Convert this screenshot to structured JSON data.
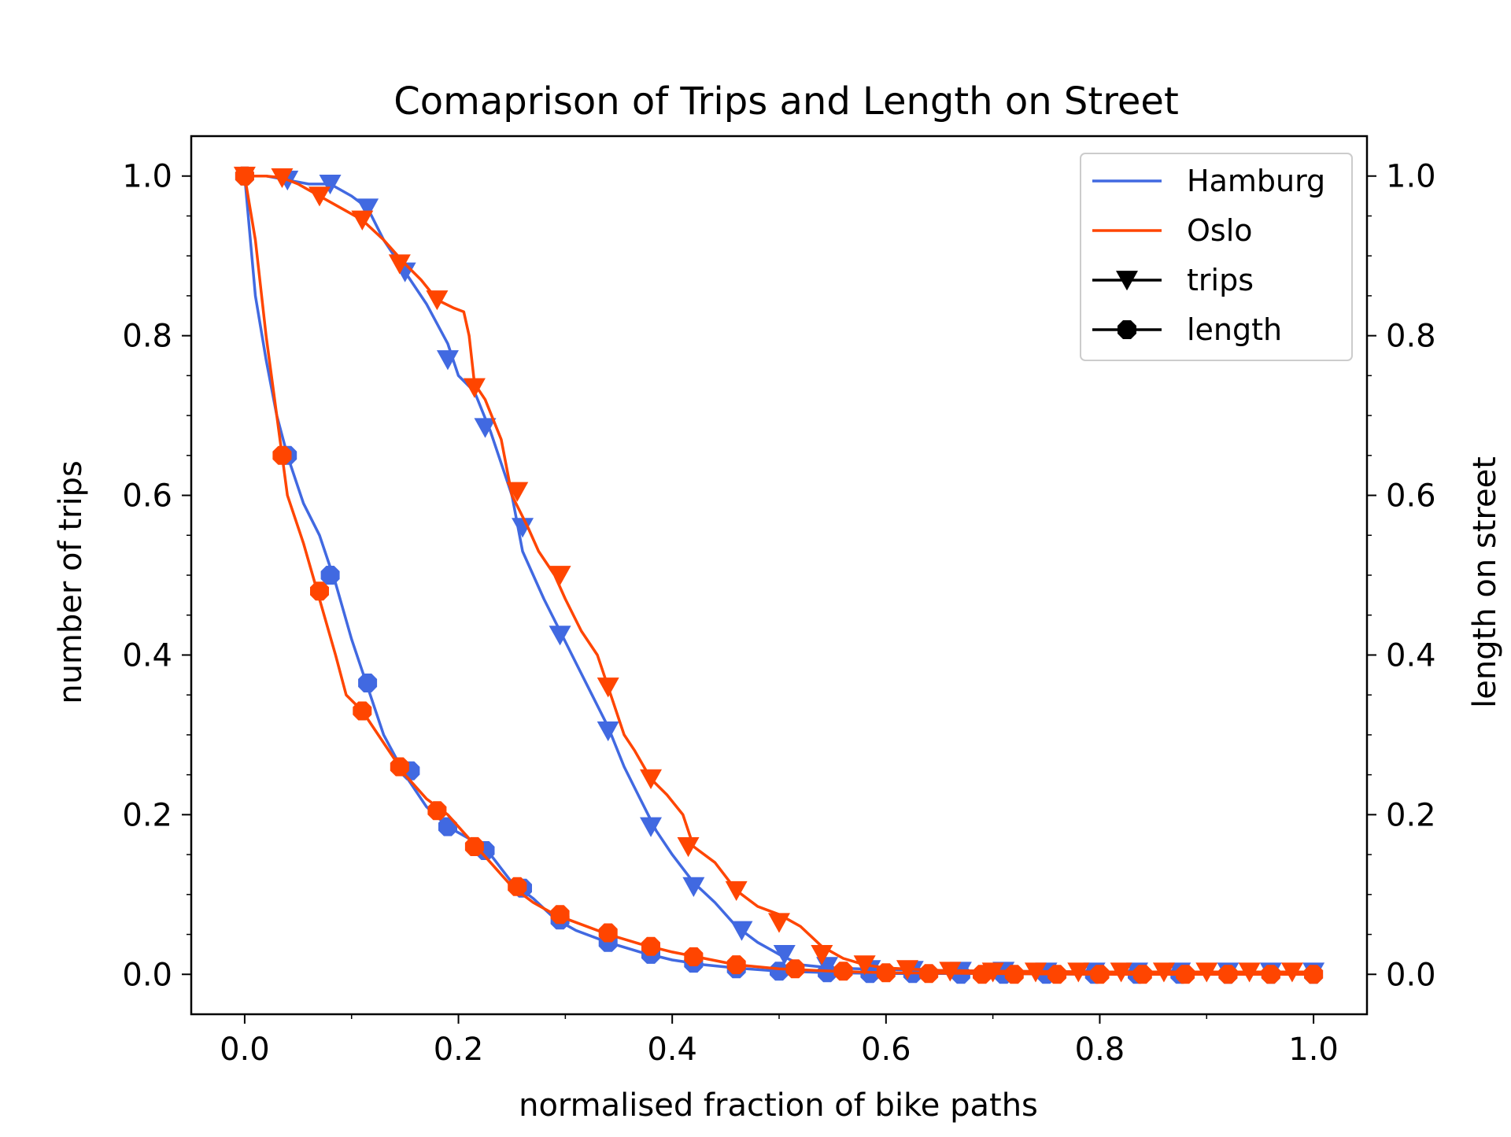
{
  "chart_data": {
    "type": "line",
    "title": "Comaprison of Trips and Length on Street",
    "xlabel": "normalised fraction of bike paths",
    "ylabel": "number of trips",
    "ylabel_right": "length on street",
    "xlim": [
      -0.05,
      1.05
    ],
    "ylim": [
      -0.05,
      1.05
    ],
    "y2lim": [
      -0.05,
      1.05
    ],
    "xticks": [
      "0.0",
      "0.2",
      "0.4",
      "0.6",
      "0.8",
      "1.0"
    ],
    "yticks": [
      "0.0",
      "0.2",
      "0.4",
      "0.6",
      "0.8",
      "1.0"
    ],
    "y2ticks": [
      "0.0",
      "0.2",
      "0.4",
      "0.6",
      "0.8",
      "1.0"
    ],
    "grid": false,
    "legend_position": "top-right",
    "legend": [
      {
        "label": "Hamburg",
        "kind": "line",
        "color": "#4169e1"
      },
      {
        "label": "Oslo",
        "kind": "line",
        "color": "#ff4500"
      },
      {
        "label": "trips",
        "kind": "marker",
        "marker": "triangle-down",
        "color": "#000000"
      },
      {
        "label": "length",
        "kind": "marker",
        "marker": "circle",
        "color": "#000000"
      }
    ],
    "series": [
      {
        "name": "Hamburg",
        "metric": "trips",
        "axis": "left",
        "color": "#4169e1",
        "marker": "triangle-down",
        "x": [
          0.0,
          0.02,
          0.04,
          0.06,
          0.08,
          0.1,
          0.115,
          0.13,
          0.15,
          0.17,
          0.19,
          0.2,
          0.215,
          0.23,
          0.25,
          0.26,
          0.28,
          0.295,
          0.31,
          0.325,
          0.34,
          0.355,
          0.37,
          0.385,
          0.4,
          0.42,
          0.44,
          0.46,
          0.48,
          0.5,
          0.52,
          0.55,
          0.6,
          0.65,
          0.7,
          0.8,
          0.9,
          1.0
        ],
        "y": [
          1.0,
          1.0,
          0.995,
          0.99,
          0.99,
          0.975,
          0.96,
          0.92,
          0.88,
          0.84,
          0.79,
          0.75,
          0.73,
          0.68,
          0.6,
          0.53,
          0.47,
          0.43,
          0.39,
          0.35,
          0.31,
          0.26,
          0.22,
          0.18,
          0.15,
          0.115,
          0.09,
          0.06,
          0.04,
          0.025,
          0.012,
          0.008,
          0.006,
          0.005,
          0.004,
          0.003,
          0.003,
          0.003
        ],
        "marker_x": [
          0.04,
          0.08,
          0.115,
          0.15,
          0.19,
          0.225,
          0.26,
          0.295,
          0.34,
          0.38,
          0.42,
          0.465,
          0.505,
          0.545,
          0.585,
          0.625,
          0.67,
          0.71,
          0.75,
          0.795,
          0.835,
          0.875,
          0.92,
          0.96,
          1.0
        ],
        "marker_y": [
          0.995,
          0.99,
          0.96,
          0.88,
          0.77,
          0.685,
          0.56,
          0.425,
          0.305,
          0.185,
          0.11,
          0.055,
          0.025,
          0.01,
          0.006,
          0.005,
          0.004,
          0.004,
          0.003,
          0.003,
          0.003,
          0.003,
          0.003,
          0.003,
          0.003
        ]
      },
      {
        "name": "Oslo",
        "metric": "trips",
        "axis": "left",
        "color": "#ff4500",
        "marker": "triangle-down",
        "x": [
          0.0,
          0.02,
          0.035,
          0.05,
          0.07,
          0.09,
          0.11,
          0.13,
          0.15,
          0.165,
          0.18,
          0.195,
          0.205,
          0.21,
          0.215,
          0.225,
          0.24,
          0.25,
          0.265,
          0.275,
          0.29,
          0.3,
          0.315,
          0.33,
          0.34,
          0.355,
          0.365,
          0.38,
          0.395,
          0.41,
          0.42,
          0.44,
          0.46,
          0.48,
          0.5,
          0.52,
          0.54,
          0.56,
          0.58,
          0.6,
          0.65,
          0.7,
          0.8,
          0.9,
          1.0
        ],
        "y": [
          1.0,
          1.0,
          0.998,
          0.99,
          0.975,
          0.96,
          0.945,
          0.92,
          0.89,
          0.87,
          0.845,
          0.835,
          0.83,
          0.8,
          0.74,
          0.72,
          0.67,
          0.6,
          0.56,
          0.53,
          0.5,
          0.47,
          0.43,
          0.4,
          0.36,
          0.3,
          0.28,
          0.245,
          0.225,
          0.2,
          0.16,
          0.14,
          0.105,
          0.085,
          0.075,
          0.06,
          0.035,
          0.02,
          0.012,
          0.008,
          0.005,
          0.004,
          0.003,
          0.003,
          0.003
        ],
        "marker_x": [
          0.0,
          0.035,
          0.07,
          0.11,
          0.145,
          0.18,
          0.215,
          0.255,
          0.295,
          0.34,
          0.38,
          0.415,
          0.46,
          0.5,
          0.54,
          0.58,
          0.62,
          0.66,
          0.7,
          0.74,
          0.78,
          0.82,
          0.86,
          0.9,
          0.94,
          0.98
        ],
        "marker_y": [
          1.0,
          0.998,
          0.975,
          0.945,
          0.89,
          0.845,
          0.735,
          0.605,
          0.5,
          0.36,
          0.245,
          0.16,
          0.105,
          0.065,
          0.025,
          0.012,
          0.006,
          0.004,
          0.003,
          0.003,
          0.003,
          0.003,
          0.003,
          0.003,
          0.003,
          0.003
        ]
      },
      {
        "name": "Hamburg",
        "metric": "length",
        "axis": "right",
        "color": "#4169e1",
        "marker": "circle",
        "x": [
          0.0,
          0.01,
          0.02,
          0.03,
          0.04,
          0.055,
          0.07,
          0.085,
          0.1,
          0.115,
          0.13,
          0.15,
          0.17,
          0.19,
          0.21,
          0.23,
          0.25,
          0.27,
          0.29,
          0.31,
          0.34,
          0.37,
          0.4,
          0.43,
          0.46,
          0.5,
          0.55,
          0.6,
          0.7,
          0.8,
          0.9,
          1.0
        ],
        "y": [
          1.0,
          0.85,
          0.77,
          0.7,
          0.65,
          0.59,
          0.55,
          0.49,
          0.42,
          0.36,
          0.3,
          0.25,
          0.21,
          0.185,
          0.17,
          0.15,
          0.115,
          0.095,
          0.07,
          0.055,
          0.04,
          0.028,
          0.018,
          0.012,
          0.008,
          0.004,
          0.002,
          0.001,
          0.001,
          0.0,
          0.0,
          0.0
        ],
        "marker_x": [
          0.0,
          0.04,
          0.08,
          0.115,
          0.155,
          0.19,
          0.225,
          0.26,
          0.295,
          0.34,
          0.38,
          0.42,
          0.46,
          0.5,
          0.545,
          0.585,
          0.625,
          0.67,
          0.71,
          0.75,
          0.795,
          0.835,
          0.875,
          0.92,
          0.96,
          1.0
        ],
        "marker_y": [
          1.0,
          0.65,
          0.5,
          0.365,
          0.255,
          0.185,
          0.155,
          0.108,
          0.068,
          0.04,
          0.025,
          0.014,
          0.007,
          0.004,
          0.002,
          0.001,
          0.001,
          0.0,
          0.0,
          0.0,
          0.0,
          0.0,
          0.0,
          0.0,
          0.0,
          0.0
        ]
      },
      {
        "name": "Oslo",
        "metric": "length",
        "axis": "right",
        "color": "#ff4500",
        "marker": "circle",
        "x": [
          0.0,
          0.01,
          0.02,
          0.03,
          0.04,
          0.055,
          0.07,
          0.085,
          0.095,
          0.11,
          0.13,
          0.15,
          0.17,
          0.19,
          0.21,
          0.23,
          0.25,
          0.27,
          0.29,
          0.31,
          0.34,
          0.37,
          0.4,
          0.43,
          0.46,
          0.5,
          0.55,
          0.6,
          0.7,
          0.8,
          0.9,
          1.0
        ],
        "y": [
          1.0,
          0.92,
          0.8,
          0.7,
          0.6,
          0.54,
          0.47,
          0.4,
          0.35,
          0.33,
          0.29,
          0.25,
          0.22,
          0.2,
          0.17,
          0.14,
          0.11,
          0.09,
          0.075,
          0.065,
          0.05,
          0.038,
          0.028,
          0.02,
          0.012,
          0.007,
          0.004,
          0.002,
          0.001,
          0.0,
          0.0,
          0.0
        ],
        "marker_x": [
          0.0,
          0.035,
          0.07,
          0.11,
          0.145,
          0.18,
          0.215,
          0.255,
          0.295,
          0.34,
          0.38,
          0.42,
          0.46,
          0.515,
          0.56,
          0.6,
          0.64,
          0.69,
          0.72,
          0.76,
          0.8,
          0.84,
          0.88,
          0.92,
          0.96,
          1.0
        ],
        "marker_y": [
          1.0,
          0.65,
          0.48,
          0.33,
          0.26,
          0.205,
          0.16,
          0.11,
          0.075,
          0.052,
          0.035,
          0.022,
          0.012,
          0.007,
          0.004,
          0.002,
          0.001,
          0.0,
          0.0,
          0.0,
          0.0,
          0.0,
          0.0,
          0.0,
          0.0,
          0.0
        ]
      }
    ]
  }
}
